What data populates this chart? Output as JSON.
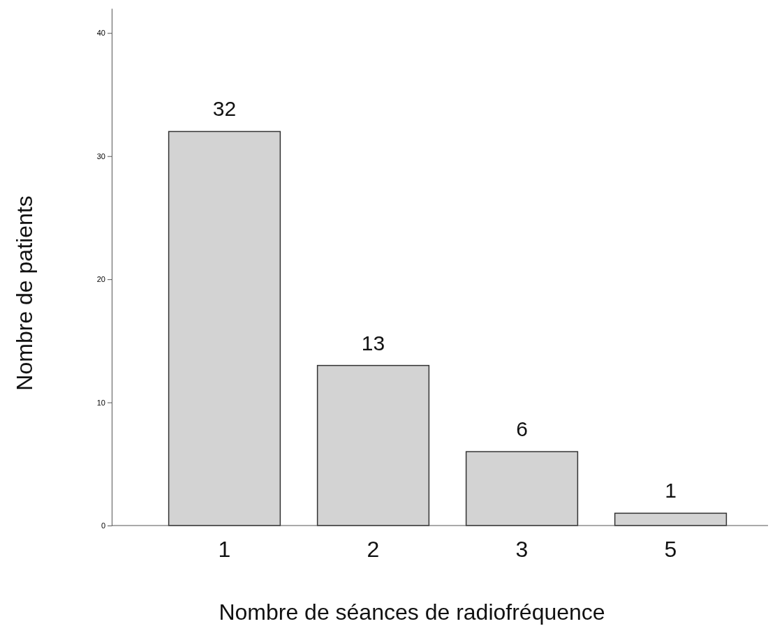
{
  "chart_data": {
    "type": "bar",
    "xlabel": "Nombre de séances de radiofréquence",
    "ylabel": "Nombre de patients",
    "categories": [
      "1",
      "2",
      "3",
      "5"
    ],
    "values": [
      32,
      13,
      6,
      1
    ],
    "data_labels": true,
    "color": "#d3d3d3",
    "ylim": [
      0,
      42
    ],
    "yticks": [
      0,
      10,
      20,
      30,
      40
    ],
    "grid": false
  }
}
